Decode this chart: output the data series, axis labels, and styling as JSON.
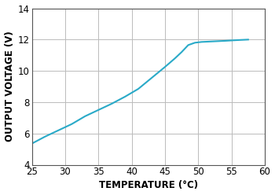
{
  "x": [
    25,
    27,
    29,
    31,
    33,
    35,
    37,
    39,
    41,
    43,
    45,
    46.5,
    47.5,
    48.5,
    49.5,
    50.5,
    52,
    54,
    56,
    57.5
  ],
  "y": [
    5.35,
    5.8,
    6.2,
    6.6,
    7.1,
    7.5,
    7.9,
    8.35,
    8.85,
    9.55,
    10.25,
    10.8,
    11.2,
    11.65,
    11.8,
    11.85,
    11.88,
    11.92,
    11.97,
    12.0
  ],
  "line_color": "#2aaac8",
  "line_width": 1.5,
  "xlim": [
    25,
    60
  ],
  "ylim": [
    4,
    14
  ],
  "xticks": [
    25,
    30,
    35,
    40,
    45,
    50,
    55,
    60
  ],
  "yticks": [
    4,
    6,
    8,
    10,
    12,
    14
  ],
  "xlabel": "TEMPERATURE (°C)",
  "ylabel": "OUTPUT VOLTAGE (V)",
  "grid_color": "#bbbbbb",
  "border_color": "#555555",
  "background_color": "#ffffff",
  "xlabel_fontsize": 8.5,
  "ylabel_fontsize": 8.5,
  "tick_fontsize": 8.5
}
